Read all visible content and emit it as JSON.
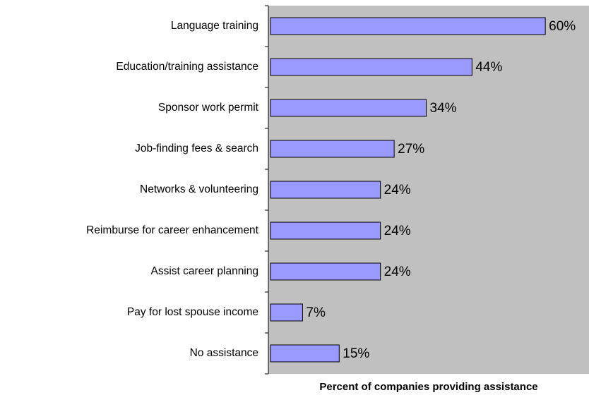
{
  "chart_data": {
    "type": "barh",
    "xlabel": "Percent of companies providing assistance",
    "categories": [
      "Language training",
      "Education/training assistance",
      "Sponsor work permit",
      "Job-finding fees & search",
      "Networks & volunteering",
      "Reimburse for career enhancement",
      "Assist career planning",
      "Pay for lost spouse income",
      "No assistance"
    ],
    "values": [
      60,
      44,
      34,
      27,
      24,
      24,
      24,
      7,
      15
    ],
    "value_labels": [
      "60%",
      "44%",
      "34%",
      "27%",
      "24%",
      "24%",
      "24%",
      "7%",
      "15%"
    ],
    "color": "#9999ff",
    "xlim": [
      0,
      70
    ]
  }
}
